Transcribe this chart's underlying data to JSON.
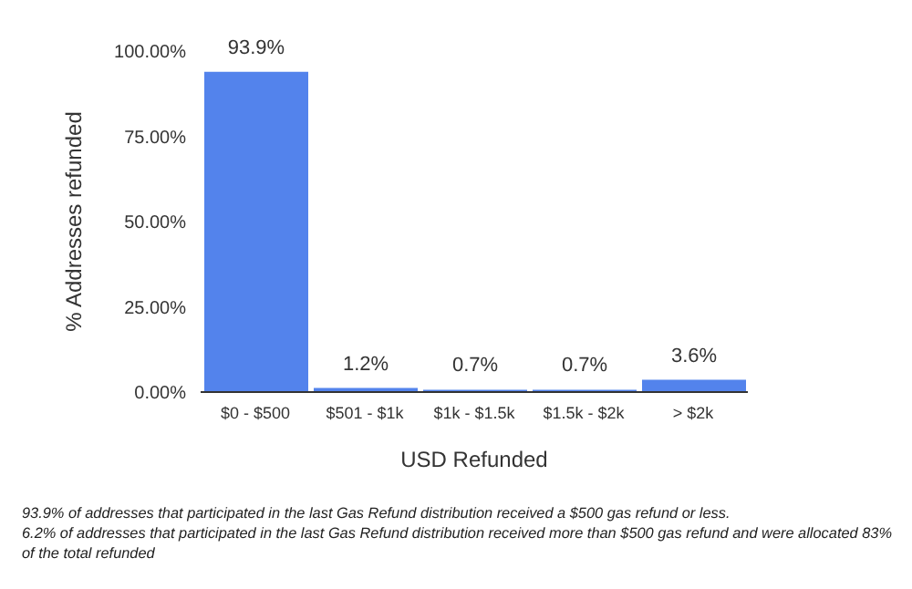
{
  "chart_data": {
    "type": "bar",
    "xlabel": "USD Refunded",
    "ylabel": "% Addresses refunded",
    "categories": [
      "$0 - $500",
      "$501 - $1k",
      "$1k - $1.5k",
      "$1.5k - $2k",
      "> $2k"
    ],
    "values": [
      93.9,
      1.2,
      0.7,
      0.7,
      3.6
    ],
    "value_labels": [
      "93.9%",
      "1.2%",
      "0.7%",
      "0.7%",
      "3.6%"
    ],
    "color": "#5383ec",
    "ylim": [
      0,
      100
    ],
    "yticks": [
      {
        "value": 0,
        "label": "0.00%"
      },
      {
        "value": 25,
        "label": "25.00%"
      },
      {
        "value": 50,
        "label": "50.00%"
      },
      {
        "value": 75,
        "label": "75.00%"
      },
      {
        "value": 100,
        "label": "100.00%"
      }
    ],
    "grid": false,
    "legend": false,
    "annotations": [
      "93.9% of addresses that participated in the last Gas Refund distribution received a $500 gas refund or less.",
      "6.2% of addresses that participated in the last Gas Refund distribution received more than $500 gas refund and were allocated 83% of the total refunded"
    ]
  }
}
